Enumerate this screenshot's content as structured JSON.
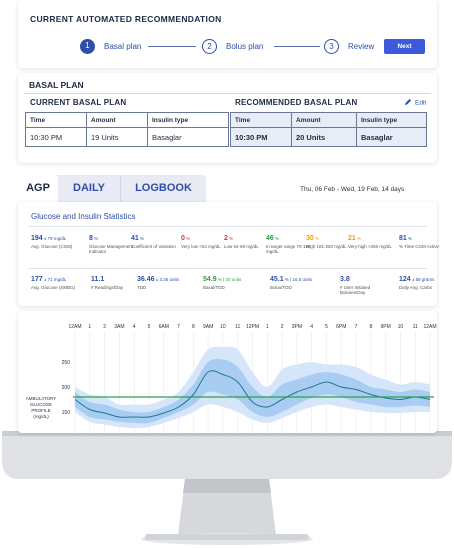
{
  "recommendation": {
    "title": "CURRENT AUTOMATED RECOMMENDATION",
    "steps": [
      {
        "num": "1",
        "label": "Basal plan"
      },
      {
        "num": "2",
        "label": "Bolus plan"
      },
      {
        "num": "3",
        "label": "Review"
      }
    ],
    "next_label": "Next"
  },
  "basal": {
    "title": "BASAL PLAN",
    "current_title": "CURRENT BASAL PLAN",
    "recommended_title": "RECOMMENDED BASAL PLAN",
    "edit_label": "Edit",
    "headers": [
      "Time",
      "Amount",
      "Insulin type"
    ],
    "current_row": [
      "10:30 PM",
      "19 Units",
      "Basaglar"
    ],
    "recommended_row": [
      "10:30 PM",
      "20 Units",
      "Basaglar"
    ]
  },
  "tabs": {
    "items": [
      "AGP",
      "DAILY",
      "LOGBOOK"
    ],
    "date_range": "Thu, 06 Feb - Wed, 19 Feb, 14 days"
  },
  "stats": {
    "title": "Glucose and Insulin Statistics",
    "row1": [
      {
        "value": "194",
        "unit": "± 79 mg/dL",
        "desc": "Avg. Glucose (CGM)",
        "color": "#2f4fa8"
      },
      {
        "value": "8",
        "unit": "%",
        "desc": "Glucose Management Indicator",
        "color": "#2f4fa8"
      },
      {
        "value": "41",
        "unit": "%",
        "desc": "Coefficient of Variation",
        "color": "#2f4fa8"
      },
      {
        "value": "0",
        "unit": "%",
        "desc": "Very low <54 mg/dL",
        "color": "#e03131"
      },
      {
        "value": "2",
        "unit": "%",
        "desc": "Low 54-69 mg/dL",
        "color": "#e03131"
      },
      {
        "value": "46",
        "unit": "%",
        "desc": "In target range 70-180 mg/dL",
        "color": "#2f9e44"
      },
      {
        "value": "30",
        "unit": "%",
        "desc": "High 181-250 mg/dL",
        "color": "#f59f00"
      },
      {
        "value": "21",
        "unit": "%",
        "desc": "Very high >250 mg/dL",
        "color": "#f59f00"
      },
      {
        "value": "81",
        "unit": "%",
        "desc": "% Time CGM Active",
        "color": "#2f4fa8"
      }
    ],
    "row2": [
      {
        "value": "177",
        "unit": "± 71 mg/dL",
        "desc": "Avg. Glucose (SMBG)",
        "color": "#2f4fa8"
      },
      {
        "value": "11.1",
        "unit": "",
        "desc": "# Readings/Day",
        "color": "#2f4fa8"
      },
      {
        "value": "36.46",
        "unit": "± 3.36 units",
        "desc": "TDD",
        "color": "#2f4fa8"
      },
      {
        "value": "54.9",
        "unit": "% | 20 units",
        "desc": "Basal/TDD",
        "color": "#2f9e44"
      },
      {
        "value": "45.1",
        "unit": "% | 16.5 units",
        "desc": "Bolus/TDD",
        "color": "#2f4fa8"
      },
      {
        "value": "3.8",
        "unit": "",
        "desc": "# User Initiated Boluses/Day",
        "color": "#2f4fa8"
      },
      {
        "value": "124",
        "unit": "± 58 grams",
        "desc": "Daily Avg. Carbs",
        "color": "#2f4fa8"
      }
    ]
  },
  "agp": {
    "hour_labels": [
      "12AM",
      "1",
      "2",
      "3AM",
      "4",
      "5",
      "6AM",
      "7",
      "8",
      "9AM",
      "10",
      "11",
      "12PM",
      "1",
      "2",
      "3PM",
      "4",
      "5",
      "6PM",
      "7",
      "8",
      "9PM",
      "10",
      "11",
      "12AM"
    ],
    "y_ticks": [
      "250",
      "200",
      "150"
    ],
    "y_label_lines": [
      "AMBULATORY",
      "GLUCOSE",
      "PROFILE",
      "(mg/dL)"
    ]
  },
  "chart_data": {
    "type": "area",
    "xlabel": "",
    "ylabel": "AMBULATORY GLUCOSE PROFILE (mg/dL)",
    "x": [
      0,
      1,
      2,
      3,
      4,
      5,
      6,
      7,
      8,
      9,
      10,
      11,
      12,
      13,
      14,
      15,
      16,
      17,
      18,
      19,
      20,
      21,
      22,
      23,
      24
    ],
    "ylim": [
      100,
      300
    ],
    "target_line": 180,
    "series": [
      {
        "values": [
          200,
          185,
          180,
          165,
          165,
          165,
          175,
          190,
          230,
          275,
          280,
          275,
          230,
          200,
          235,
          245,
          250,
          245,
          245,
          240,
          225,
          215,
          205,
          210,
          205
        ]
      },
      {
        "values": [
          190,
          170,
          165,
          155,
          150,
          150,
          160,
          175,
          205,
          250,
          255,
          240,
          200,
          180,
          205,
          215,
          225,
          230,
          225,
          215,
          200,
          195,
          190,
          195,
          190
        ]
      },
      {
        "values": [
          175,
          155,
          148,
          140,
          140,
          140,
          148,
          160,
          185,
          230,
          225,
          210,
          170,
          160,
          175,
          190,
          200,
          210,
          200,
          195,
          185,
          178,
          175,
          180,
          175
        ]
      },
      {
        "values": [
          160,
          140,
          135,
          130,
          128,
          128,
          138,
          150,
          165,
          190,
          185,
          175,
          150,
          140,
          150,
          165,
          178,
          185,
          180,
          170,
          165,
          160,
          160,
          163,
          160
        ]
      },
      {
        "values": [
          150,
          130,
          125,
          120,
          118,
          120,
          128,
          138,
          150,
          165,
          160,
          150,
          135,
          128,
          138,
          150,
          160,
          165,
          160,
          155,
          150,
          148,
          148,
          150,
          150
        ]
      }
    ]
  }
}
